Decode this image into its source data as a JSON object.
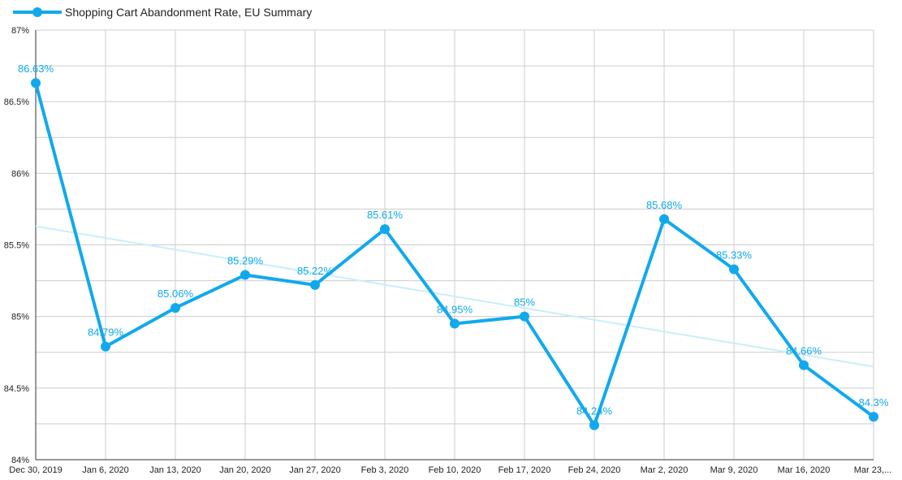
{
  "chart_data": {
    "type": "line",
    "title": "",
    "xlabel": "",
    "ylabel": "",
    "legend": {
      "position": "top-left",
      "entries": [
        "Shopping Cart Abandonment Rate, EU Summary"
      ]
    },
    "categories": [
      "Dec 30, 2019",
      "Jan 6, 2020",
      "Jan 13, 2020",
      "Jan 20, 2020",
      "Jan 27, 2020",
      "Feb 3, 2020",
      "Feb 10, 2020",
      "Feb 17, 2020",
      "Feb 24, 2020",
      "Mar 2, 2020",
      "Mar 9, 2020",
      "Mar 16, 2020",
      "Mar 23,..."
    ],
    "series": [
      {
        "name": "Shopping Cart Abandonment Rate, EU Summary",
        "values": [
          86.63,
          84.79,
          85.06,
          85.29,
          85.22,
          85.61,
          84.95,
          85,
          84.24,
          85.68,
          85.33,
          84.66,
          84.3
        ],
        "labels": [
          "86.63%",
          "84.79%",
          "85.06%",
          "85.29%",
          "85.22%",
          "85.61%",
          "84.95%",
          "85%",
          "84.24%",
          "85.68%",
          "85.33%",
          "84.66%",
          "84.3%"
        ],
        "color": "#11a9ed"
      }
    ],
    "trendline": {
      "start": 85.63,
      "end": 84.65,
      "color": "#c9eefb"
    },
    "ylim": [
      84,
      87
    ],
    "yticks": [
      {
        "value": 84,
        "label": "84%"
      },
      {
        "value": 84.5,
        "label": "84.5%"
      },
      {
        "value": 85,
        "label": "85%"
      },
      {
        "value": 85.5,
        "label": "85.5%"
      },
      {
        "value": 86,
        "label": "86%"
      },
      {
        "value": 86.5,
        "label": "86.5%"
      },
      {
        "value": 87,
        "label": "87%"
      }
    ],
    "grid": true,
    "colors": {
      "grid": "#cccccc",
      "axis_text": "#222222"
    }
  }
}
